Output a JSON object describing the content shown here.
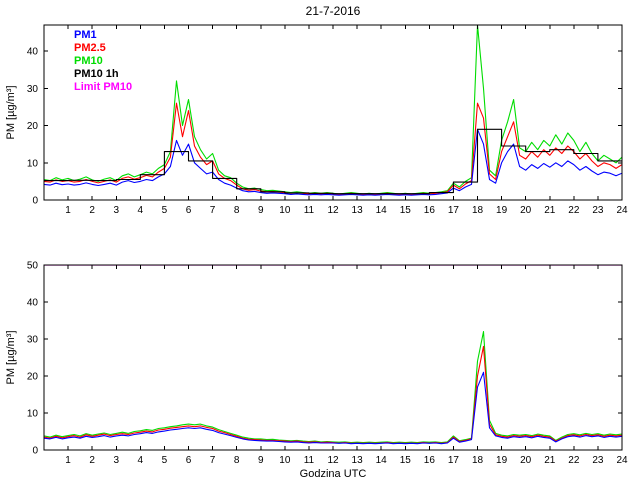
{
  "figure": {
    "title": "21-7-2016",
    "background": "#ffffff"
  },
  "legend": {
    "items": [
      {
        "label": "PM1",
        "color": "#0000ff"
      },
      {
        "label": "PM2.5",
        "color": "#ff0000"
      },
      {
        "label": "PM10",
        "color": "#00dd00"
      },
      {
        "label": "PM10 1h",
        "color": "#000000"
      },
      {
        "label": "Limit PM10",
        "color": "#ff00ff"
      }
    ]
  },
  "chart_data": [
    {
      "type": "line",
      "title": "",
      "xlabel": "",
      "ylabel": "PM [µg/m³]",
      "xlim": [
        0,
        24
      ],
      "ylim": [
        0,
        47
      ],
      "xticks": [
        1,
        2,
        3,
        4,
        5,
        6,
        7,
        8,
        9,
        10,
        11,
        12,
        13,
        14,
        15,
        16,
        17,
        18,
        19,
        20,
        21,
        22,
        23,
        24
      ],
      "yticks": [
        0,
        10,
        20,
        30,
        40
      ],
      "grid": false,
      "legend_position": "top-left-text-only",
      "series": [
        {
          "name": "PM10",
          "color": "#00dd00",
          "type": "line",
          "x_start": 0,
          "x_step": 0.25,
          "values": [
            5.5,
            5.2,
            6,
            5.4,
            5.8,
            5.2,
            5.6,
            6.2,
            5.4,
            5,
            5.6,
            6,
            5.2,
            6.5,
            7,
            6.2,
            6.8,
            7.5,
            7,
            8.5,
            9.5,
            13,
            32,
            20,
            27,
            17,
            13.5,
            11,
            12.5,
            8,
            6.5,
            6,
            4.5,
            3.5,
            3,
            3.2,
            2.8,
            2.5,
            2.6,
            2.4,
            2.2,
            2,
            2.2,
            2,
            1.8,
            2,
            1.8,
            2,
            1.8,
            1.6,
            1.8,
            2,
            1.8,
            1.6,
            1.8,
            1.6,
            1.8,
            2,
            1.8,
            1.6,
            1.8,
            1.6,
            1.8,
            2,
            1.8,
            2,
            2.2,
            2.5,
            4.5,
            3.5,
            5,
            6,
            47,
            30,
            8,
            6.5,
            16,
            21,
            27,
            14,
            13,
            15.5,
            13.5,
            16,
            14.5,
            17.5,
            15,
            18,
            16,
            13,
            15.5,
            12.5,
            10.5,
            12,
            11,
            10,
            11.5
          ]
        },
        {
          "name": "PM2.5",
          "color": "#ff0000",
          "type": "line",
          "x_start": 0,
          "x_step": 0.25,
          "values": [
            5,
            4.8,
            5.4,
            5,
            5.2,
            4.8,
            5,
            5.5,
            5,
            4.6,
            5,
            5.4,
            4.8,
            5.8,
            6.2,
            5.6,
            6,
            6.6,
            6.2,
            7.5,
            8.5,
            11.5,
            26,
            17,
            24,
            14.5,
            11.5,
            9.5,
            10.5,
            7,
            5.8,
            5.2,
            4,
            3,
            2.6,
            2.8,
            2.4,
            2.2,
            2.3,
            2.1,
            2,
            1.8,
            1.9,
            1.8,
            1.6,
            1.8,
            1.6,
            1.8,
            1.6,
            1.5,
            1.6,
            1.8,
            1.6,
            1.5,
            1.6,
            1.5,
            1.6,
            1.8,
            1.6,
            1.5,
            1.6,
            1.5,
            1.6,
            1.8,
            1.6,
            1.8,
            2,
            2.2,
            4,
            3,
            4.3,
            5.2,
            26,
            22,
            7,
            5.5,
            13,
            17,
            21,
            12,
            11,
            13,
            11.5,
            13.5,
            12,
            14,
            12.5,
            14.5,
            13,
            11,
            12.5,
            10.5,
            9,
            10,
            9.5,
            8.5,
            9.5
          ]
        },
        {
          "name": "PM1",
          "color": "#0000ff",
          "type": "line",
          "x_start": 0,
          "x_step": 0.25,
          "values": [
            4.2,
            4,
            4.5,
            4.1,
            4.3,
            4,
            4.2,
            4.6,
            4.2,
            3.9,
            4.2,
            4.5,
            4,
            4.8,
            5.2,
            4.7,
            5,
            5.5,
            5.2,
            6.2,
            7,
            9,
            16,
            12,
            15,
            10,
            8.5,
            7,
            7.5,
            5.5,
            4.5,
            4,
            3.2,
            2.5,
            2.2,
            2.3,
            2,
            1.8,
            1.9,
            1.8,
            1.7,
            1.5,
            1.6,
            1.5,
            1.4,
            1.5,
            1.4,
            1.5,
            1.4,
            1.3,
            1.4,
            1.5,
            1.4,
            1.3,
            1.4,
            1.3,
            1.4,
            1.5,
            1.4,
            1.3,
            1.4,
            1.3,
            1.4,
            1.5,
            1.4,
            1.5,
            1.7,
            1.9,
            3.2,
            2.5,
            3.5,
            4.2,
            19,
            15,
            5.5,
            4.5,
            10,
            13,
            15,
            9,
            8,
            9.5,
            8.5,
            9.8,
            8.8,
            10,
            9,
            10.5,
            9.5,
            8,
            9,
            7.8,
            6.8,
            7.5,
            7.2,
            6.5,
            7.2
          ]
        },
        {
          "name": "PM10 1h",
          "color": "#000000",
          "type": "step",
          "x_start": 0,
          "x_step": 1,
          "values": [
            5.2,
            5.3,
            5.2,
            5.5,
            6.8,
            13,
            10.5,
            5.8,
            3,
            2.2,
            1.9,
            1.8,
            1.7,
            1.7,
            1.7,
            1.7,
            2,
            4.8,
            19,
            14.5,
            13,
            13.5,
            12.5,
            10.5
          ]
        }
      ]
    },
    {
      "type": "line",
      "title": "",
      "xlabel": "Godzina UTC",
      "ylabel": "PM [µg/m³]",
      "xlim": [
        0,
        24
      ],
      "ylim": [
        0,
        50
      ],
      "xticks": [
        1,
        2,
        3,
        4,
        5,
        6,
        7,
        8,
        9,
        10,
        11,
        12,
        13,
        14,
        15,
        16,
        17,
        18,
        19,
        20,
        21,
        22,
        23,
        24
      ],
      "yticks": [
        0,
        10,
        20,
        30,
        40,
        50
      ],
      "grid": false,
      "series": [
        {
          "name": "PM10",
          "color": "#00dd00",
          "type": "line",
          "x_start": 0,
          "x_step": 0.25,
          "values": [
            3.8,
            3.5,
            4,
            3.6,
            3.9,
            4.2,
            3.8,
            4.4,
            4,
            4.3,
            4.6,
            4.2,
            4.5,
            4.8,
            4.5,
            5,
            5.2,
            5.5,
            5.3,
            5.8,
            6,
            6.3,
            6.5,
            6.8,
            7,
            6.8,
            7,
            6.5,
            6.2,
            5.5,
            5,
            4.5,
            4,
            3.5,
            3.2,
            3,
            3,
            2.8,
            2.9,
            2.7,
            2.6,
            2.5,
            2.6,
            2.4,
            2.3,
            2.4,
            2.2,
            2.3,
            2.2,
            2.1,
            2.2,
            2,
            2.1,
            2,
            2.1,
            2,
            2.1,
            2.2,
            2,
            2.1,
            2,
            2.1,
            2,
            2.2,
            2.1,
            2.2,
            2,
            2.2,
            3.8,
            2.5,
            2.8,
            3.2,
            24,
            32,
            8,
            4.5,
            4,
            3.8,
            4.2,
            4,
            4.2,
            3.9,
            4.3,
            4,
            3.8,
            2.6,
            3.5,
            4.2,
            4.4,
            4.1,
            4.5,
            4.2,
            4.4,
            4,
            4.3,
            4.1,
            4.3
          ]
        },
        {
          "name": "PM2.5",
          "color": "#ff0000",
          "type": "line",
          "x_start": 0,
          "x_step": 0.25,
          "values": [
            3.5,
            3.2,
            3.7,
            3.3,
            3.6,
            3.9,
            3.5,
            4.1,
            3.7,
            4,
            4.3,
            3.9,
            4.2,
            4.4,
            4.2,
            4.6,
            4.8,
            5.1,
            4.9,
            5.4,
            5.6,
            5.9,
            6.1,
            6.3,
            6.5,
            6.3,
            6.5,
            6.1,
            5.8,
            5.1,
            4.7,
            4.2,
            3.7,
            3.2,
            2.9,
            2.8,
            2.7,
            2.6,
            2.6,
            2.5,
            2.4,
            2.3,
            2.4,
            2.2,
            2.1,
            2.2,
            2,
            2.1,
            2,
            1.9,
            2,
            1.8,
            1.9,
            1.8,
            1.9,
            1.8,
            1.9,
            2,
            1.8,
            1.9,
            1.8,
            1.9,
            1.8,
            2,
            1.9,
            2,
            1.8,
            2,
            3.5,
            2.3,
            2.6,
            3,
            20,
            28,
            7,
            4.1,
            3.7,
            3.5,
            3.9,
            3.7,
            3.9,
            3.6,
            4,
            3.7,
            3.5,
            2.4,
            3.2,
            3.9,
            4.1,
            3.8,
            4.2,
            3.9,
            4.1,
            3.7,
            4,
            3.8,
            4
          ]
        },
        {
          "name": "PM1",
          "color": "#0000ff",
          "type": "line",
          "x_start": 0,
          "x_step": 0.25,
          "values": [
            3.2,
            3,
            3.4,
            3,
            3.3,
            3.5,
            3.2,
            3.7,
            3.4,
            3.6,
            3.9,
            3.5,
            3.8,
            4,
            3.8,
            4.2,
            4.4,
            4.7,
            4.5,
            4.9,
            5.1,
            5.4,
            5.6,
            5.8,
            6,
            5.8,
            6,
            5.6,
            5.3,
            4.7,
            4.3,
            3.9,
            3.4,
            3,
            2.7,
            2.6,
            2.5,
            2.4,
            2.4,
            2.3,
            2.2,
            2.1,
            2.2,
            2,
            1.9,
            2,
            1.9,
            1.9,
            1.9,
            1.8,
            1.9,
            1.7,
            1.8,
            1.7,
            1.8,
            1.7,
            1.8,
            1.9,
            1.7,
            1.8,
            1.7,
            1.8,
            1.7,
            1.9,
            1.8,
            1.9,
            1.7,
            1.9,
            3.2,
            2.1,
            2.4,
            2.8,
            17,
            21,
            6,
            3.8,
            3.4,
            3.2,
            3.6,
            3.4,
            3.6,
            3.3,
            3.7,
            3.4,
            3.2,
            2.2,
            3,
            3.6,
            3.8,
            3.5,
            3.9,
            3.6,
            3.8,
            3.4,
            3.7,
            3.5,
            3.7
          ]
        },
        {
          "name": "Limit PM10",
          "color": "#ff00ff",
          "type": "hline",
          "value": 50
        }
      ]
    }
  ]
}
